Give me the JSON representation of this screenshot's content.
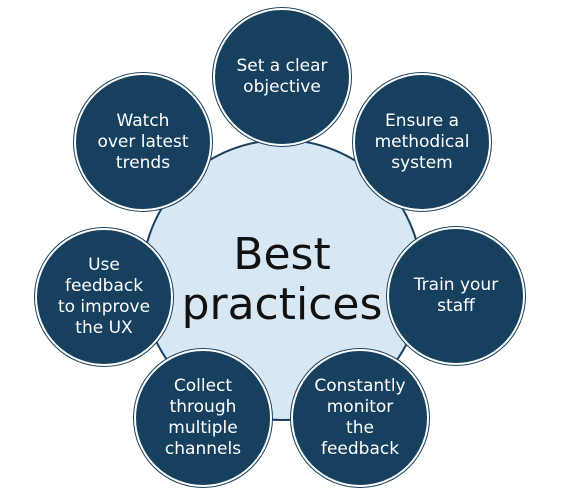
{
  "center": {
    "lines": [
      "Best",
      "practices"
    ]
  },
  "nodes": [
    {
      "id": "set-objective",
      "lines": [
        "Set a clear",
        "objective"
      ]
    },
    {
      "id": "ensure-system",
      "lines": [
        "Ensure a",
        "methodical",
        "system"
      ]
    },
    {
      "id": "train-staff",
      "lines": [
        "Train your",
        "staff"
      ]
    },
    {
      "id": "monitor-feedback",
      "lines": [
        "Constantly",
        "monitor",
        "the",
        "feedback"
      ]
    },
    {
      "id": "collect-channels",
      "lines": [
        "Collect",
        "through",
        "multiple",
        "channels"
      ]
    },
    {
      "id": "improve-ux",
      "lines": [
        "Use",
        "feedback",
        "to improve",
        "the UX"
      ]
    },
    {
      "id": "watch-trends",
      "lines": [
        "Watch",
        "over latest",
        "trends"
      ]
    }
  ],
  "colors": {
    "node_fill": "#17405f",
    "center_fill": "#d7e8f4",
    "node_text": "#ffffff",
    "center_text": "#111111"
  }
}
